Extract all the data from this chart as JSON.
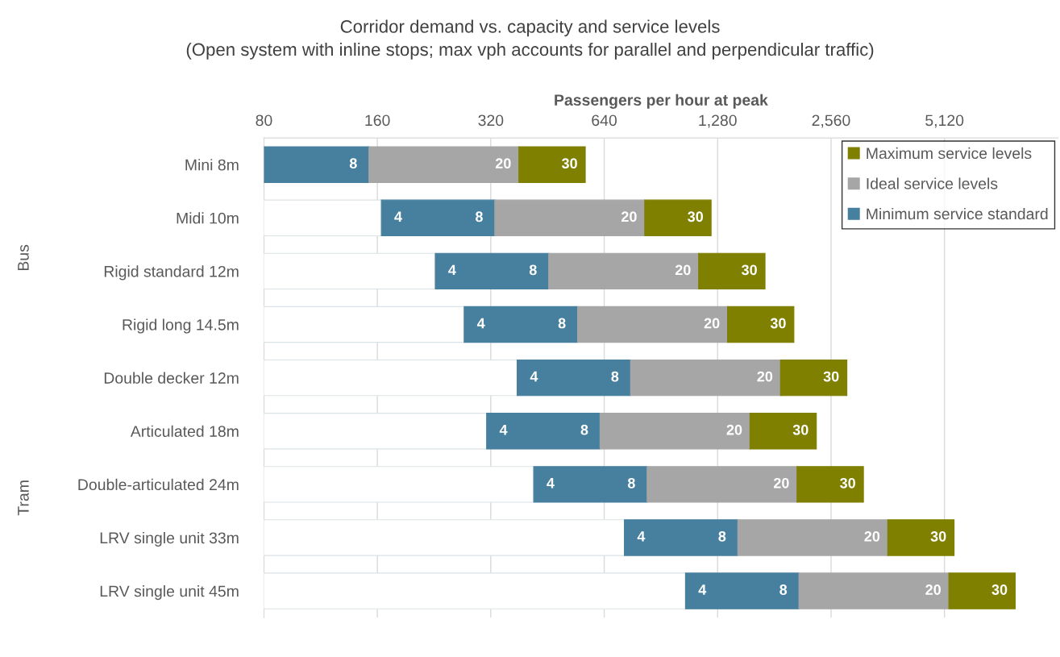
{
  "chart_data": {
    "type": "bar",
    "orientation": "horizontal",
    "stacked": true,
    "log": "x",
    "title": "Corridor demand vs. capacity and service levels",
    "subtitle": "(Open system with inline stops; max vph accounts for parallel and perpendicular traffic)",
    "xlabel": "Passengers per hour at peak",
    "categories": [
      "Mini 8m",
      "Midi 10m",
      "Rigid standard 12m",
      "Rigid long 14.5m",
      "Double decker 12m",
      "Articulated 18m",
      "Double-articulated 24m",
      "LRV single unit 33m",
      "LRV single unit 45m"
    ],
    "series": [
      {
        "color": "#ffffff",
        "values": [
          null,
          164,
          228,
          272,
          376,
          312,
          416,
          724,
          1052
        ]
      },
      {
        "name": "Minimum service standard",
        "color": "#47809f",
        "values": [
          152,
          164,
          228,
          272,
          376,
          312,
          416,
          724,
          1052
        ]
      },
      {
        "name": "Ideal service levels",
        "color": "#a6a6a6",
        "values": [
          228,
          492,
          684,
          816,
          1128,
          936,
          1248,
          2172,
          3156
        ]
      },
      {
        "name": "Maximum service levels",
        "color": "#7f7f00",
        "values": [
          190,
          410,
          570,
          680,
          940,
          780,
          1040,
          1810,
          2630
        ]
      }
    ],
    "xlim": [
      80,
      10240
    ],
    "xticks": [
      80,
      160,
      {
        "value": 320,
        "label": "320"
      },
      {
        "value": 640,
        "label": "640"
      },
      {
        "value": 1280,
        "label": "1,280"
      },
      {
        "value": 2560,
        "label": "2,560"
      },
      {
        "value": 5120,
        "label": "5,120"
      }
    ],
    "grid": "x",
    "legend": "top right",
    "annotations": [
      "Bus",
      "Tram",
      {
        "text": "8",
        "x": 152,
        "y": "Mini 8m"
      },
      {
        "text": "20",
        "x": 380,
        "y": "Mini 8m"
      },
      {
        "text": "30",
        "x": 570,
        "y": "Mini 8m"
      },
      {
        "text": "4",
        "x": 164,
        "y": "Midi 10m"
      },
      {
        "text": "8",
        "x": 328,
        "y": "Midi 10m"
      },
      {
        "text": "20",
        "x": 820,
        "y": "Midi 10m"
      },
      {
        "text": "30",
        "x": 1230,
        "y": "Midi 10m"
      },
      {
        "text": "4",
        "x": 228,
        "y": "Rigid standard 12m"
      },
      {
        "text": "8",
        "x": 456,
        "y": "Rigid standard 12m"
      },
      {
        "text": "20",
        "x": 1140,
        "y": "Rigid standard 12m"
      },
      {
        "text": "30",
        "x": 1710,
        "y": "Rigid standard 12m"
      },
      {
        "text": "4",
        "x": 272,
        "y": "Rigid long 14.5m"
      },
      {
        "text": "8",
        "x": 544,
        "y": "Rigid long 14.5m"
      },
      {
        "text": "20",
        "x": 1360,
        "y": "Rigid long 14.5m"
      },
      {
        "text": "30",
        "x": 2040,
        "y": "Rigid long 14.5m"
      },
      {
        "text": "4",
        "x": 376,
        "y": "Double decker 12m"
      },
      {
        "text": "8",
        "x": 752,
        "y": "Double decker 12m"
      },
      {
        "text": "20",
        "x": 1880,
        "y": "Double decker 12m"
      },
      {
        "text": "30",
        "x": 2820,
        "y": "Double decker 12m"
      },
      {
        "text": "4",
        "x": 312,
        "y": "Articulated 18m"
      },
      {
        "text": "8",
        "x": 624,
        "y": "Articulated 18m"
      },
      {
        "text": "20",
        "x": 1560,
        "y": "Articulated 18m"
      },
      {
        "text": "30",
        "x": 2340,
        "y": "Articulated 18m"
      },
      {
        "text": "4",
        "x": 416,
        "y": "Double-articulated 24m"
      },
      {
        "text": "8",
        "x": 832,
        "y": "Double-articulated 24m"
      },
      {
        "text": "20",
        "x": 2080,
        "y": "Double-articulated 24m"
      },
      {
        "text": "30",
        "x": 3120,
        "y": "Double-articulated 24m"
      },
      {
        "text": "4",
        "x": 724,
        "y": "LRV single unit 33m"
      },
      {
        "text": "8",
        "x": 1448,
        "y": "LRV single unit 33m"
      },
      {
        "text": "20",
        "x": 3620,
        "y": "LRV single unit 33m"
      },
      {
        "text": "30",
        "x": 5430,
        "y": "LRV single unit 33m"
      },
      {
        "text": "4",
        "x": 1052,
        "y": "LRV single unit 45m"
      },
      {
        "text": "8",
        "x": 2104,
        "y": "LRV single unit 45m"
      },
      {
        "text": "20",
        "x": 5260,
        "y": "LRV single unit 45m"
      },
      {
        "text": "30",
        "x": 7890,
        "y": "LRV single unit 45m"
      }
    ]
  }
}
